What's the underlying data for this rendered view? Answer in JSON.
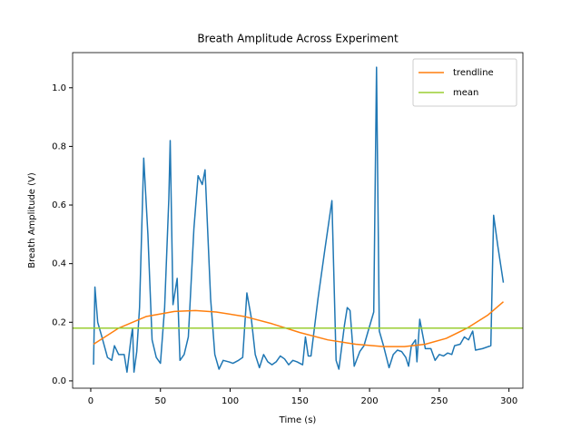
{
  "chart_data": {
    "type": "line",
    "title": "Breath Amplitude Across Experiment",
    "xlabel": "Time (s)",
    "ylabel": "Breath Amplitude (V)",
    "xlim": [
      -13,
      310
    ],
    "ylim": [
      -0.025,
      1.12
    ],
    "xticks": [
      0,
      50,
      100,
      150,
      200,
      250,
      300
    ],
    "yticks": [
      {
        "value": 0,
        "label": "0.0"
      },
      {
        "value": 0.2,
        "label": "0.2"
      },
      {
        "value": 0.4,
        "label": "0.4"
      },
      {
        "value": 0.6,
        "label": "0.6"
      },
      {
        "value": 0.8,
        "label": "0.8"
      },
      {
        "value": 1.0,
        "label": "1.0"
      }
    ],
    "legend": "upper right",
    "series": [
      {
        "name": null,
        "color": "#1f77b4",
        "x": [
          2,
          3,
          5,
          8,
          12,
          15,
          17,
          20,
          24,
          26,
          29,
          30,
          31,
          33,
          35,
          38,
          41,
          44,
          47,
          50,
          53,
          56,
          57,
          59,
          62,
          64,
          67,
          70,
          74,
          77,
          80,
          82,
          86,
          89,
          92,
          95,
          99,
          102,
          106,
          109,
          112,
          115,
          118,
          121,
          124,
          127,
          130,
          133,
          136,
          139,
          142,
          145,
          148,
          152,
          154,
          156,
          158,
          163,
          168,
          173,
          176,
          178,
          182,
          184,
          186,
          189,
          193,
          196,
          199,
          203,
          205,
          207,
          210,
          214,
          217,
          220,
          223,
          226,
          228,
          230,
          233,
          234,
          236,
          240,
          244,
          247,
          250,
          253,
          256,
          259,
          261,
          265,
          268,
          271,
          274,
          276,
          281,
          287,
          289,
          292,
          296
        ],
        "values": [
          0.055,
          0.32,
          0.2,
          0.15,
          0.08,
          0.07,
          0.12,
          0.09,
          0.09,
          0.03,
          0.15,
          0.18,
          0.03,
          0.1,
          0.25,
          0.76,
          0.5,
          0.14,
          0.08,
          0.06,
          0.25,
          0.62,
          0.82,
          0.26,
          0.35,
          0.07,
          0.09,
          0.15,
          0.52,
          0.7,
          0.67,
          0.72,
          0.28,
          0.09,
          0.04,
          0.07,
          0.065,
          0.06,
          0.07,
          0.08,
          0.3,
          0.22,
          0.09,
          0.045,
          0.09,
          0.065,
          0.055,
          0.065,
          0.085,
          0.075,
          0.055,
          0.07,
          0.065,
          0.055,
          0.15,
          0.085,
          0.085,
          0.28,
          0.45,
          0.615,
          0.07,
          0.04,
          0.19,
          0.25,
          0.24,
          0.05,
          0.1,
          0.12,
          0.17,
          0.235,
          1.07,
          0.17,
          0.12,
          0.045,
          0.09,
          0.105,
          0.1,
          0.08,
          0.05,
          0.12,
          0.14,
          0.065,
          0.21,
          0.11,
          0.11,
          0.07,
          0.09,
          0.085,
          0.095,
          0.09,
          0.12,
          0.125,
          0.15,
          0.14,
          0.17,
          0.105,
          0.11,
          0.12,
          0.565,
          0.46,
          0.335
        ]
      },
      {
        "name": "trendline",
        "color": "#ff7f0e",
        "x": [
          2,
          20,
          40,
          60,
          75,
          90,
          110,
          130,
          150,
          170,
          190,
          210,
          225,
          240,
          255,
          270,
          285,
          296
        ],
        "values": [
          0.125,
          0.18,
          0.22,
          0.237,
          0.24,
          0.235,
          0.22,
          0.195,
          0.165,
          0.14,
          0.125,
          0.117,
          0.117,
          0.125,
          0.145,
          0.18,
          0.225,
          0.27
        ]
      },
      {
        "name": "mean",
        "color": "#9acd32",
        "hline": 0.18
      }
    ]
  }
}
